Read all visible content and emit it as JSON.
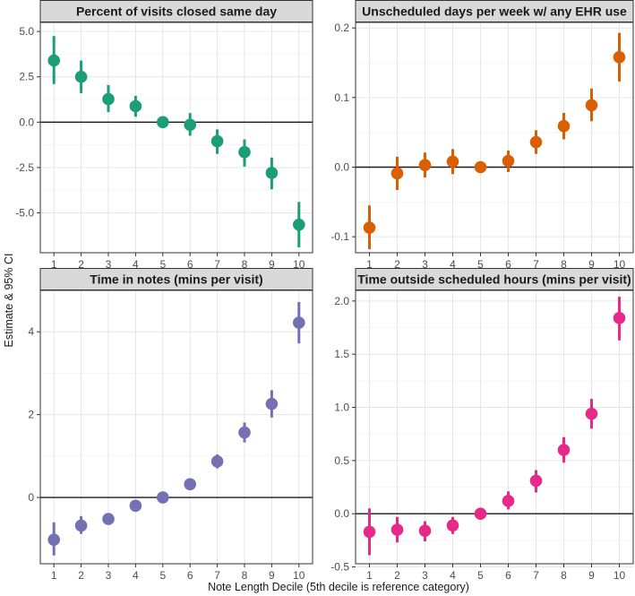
{
  "ylabel": "Estimate & 95% CI",
  "xlabel": "Note Length Decile (5th decile is reference category)",
  "chart_data": [
    {
      "type": "scatter",
      "title": "Percent of visits closed same day",
      "color": "#1b9e77",
      "x": [
        1,
        2,
        3,
        4,
        5,
        6,
        7,
        8,
        9,
        10
      ],
      "y": [
        3.4,
        2.5,
        1.27,
        0.88,
        0.0,
        -0.15,
        -1.05,
        -1.65,
        -2.8,
        -5.65
      ],
      "ci_low": [
        2.1,
        1.6,
        0.55,
        0.3,
        0.0,
        -0.75,
        -1.75,
        -2.45,
        -3.7,
        -6.9
      ],
      "ci_high": [
        4.75,
        3.4,
        2.05,
        1.45,
        0.0,
        0.5,
        -0.4,
        -0.95,
        -1.95,
        -4.4
      ],
      "ylim": [
        -7.2,
        5.5
      ],
      "yticks": [
        -5.0,
        -2.5,
        0.0,
        2.5,
        5.0
      ],
      "ytick_labels": [
        "-5.0",
        "-2.5",
        "0.0",
        "2.5",
        "5.0"
      ]
    },
    {
      "type": "scatter",
      "title": "Unscheduled days per week w/ any EHR use",
      "color": "#d95f02",
      "x": [
        1,
        2,
        3,
        4,
        5,
        6,
        7,
        8,
        9,
        10
      ],
      "y": [
        -0.087,
        -0.009,
        0.003,
        0.008,
        0.0,
        0.009,
        0.036,
        0.059,
        0.089,
        0.158
      ],
      "ci_low": [
        -0.118,
        -0.033,
        -0.015,
        -0.01,
        0.0,
        -0.007,
        0.019,
        0.04,
        0.066,
        0.123
      ],
      "ci_high": [
        -0.055,
        0.015,
        0.021,
        0.026,
        0.0,
        0.024,
        0.053,
        0.078,
        0.113,
        0.193
      ],
      "ylim": [
        -0.123,
        0.208
      ],
      "yticks": [
        -0.1,
        0.0,
        0.1,
        0.2
      ],
      "ytick_labels": [
        "-0.1",
        "0.0",
        "0.1",
        "0.2"
      ]
    },
    {
      "type": "scatter",
      "title": "Time in notes (mins per visit)",
      "color": "#7570b3",
      "x": [
        1,
        2,
        3,
        4,
        5,
        6,
        7,
        8,
        9,
        10
      ],
      "y": [
        -1.02,
        -0.68,
        -0.52,
        -0.2,
        0.0,
        0.32,
        0.87,
        1.57,
        2.26,
        4.22
      ],
      "ci_low": [
        -1.4,
        -0.88,
        -0.63,
        -0.3,
        0.0,
        0.2,
        0.7,
        1.33,
        1.93,
        3.72
      ],
      "ci_high": [
        -0.6,
        -0.45,
        -0.41,
        -0.1,
        0.0,
        0.42,
        1.04,
        1.81,
        2.59,
        4.72
      ],
      "ylim": [
        -1.6,
        5.0
      ],
      "yticks": [
        0,
        2,
        4
      ],
      "ytick_labels": [
        "0",
        "2",
        "4"
      ]
    },
    {
      "type": "scatter",
      "title": "Time outside scheduled hours (mins per visit)",
      "color": "#e7298a",
      "x": [
        1,
        2,
        3,
        4,
        5,
        6,
        7,
        8,
        9,
        10
      ],
      "y": [
        -0.17,
        -0.15,
        -0.16,
        -0.11,
        0.0,
        0.12,
        0.31,
        0.6,
        0.94,
        1.84
      ],
      "ci_low": [
        -0.39,
        -0.27,
        -0.26,
        -0.19,
        0.0,
        0.04,
        0.2,
        0.48,
        0.8,
        1.63
      ],
      "ci_high": [
        0.05,
        -0.03,
        -0.07,
        -0.03,
        0.0,
        0.21,
        0.41,
        0.72,
        1.08,
        2.04
      ],
      "ylim": [
        -0.47,
        2.1
      ],
      "yticks": [
        -0.5,
        0.0,
        0.5,
        1.0,
        1.5,
        2.0
      ],
      "ytick_labels": [
        "-0.5",
        "0.0",
        "0.5",
        "1.0",
        "1.5",
        "2.0"
      ]
    }
  ],
  "xticks": [
    1,
    2,
    3,
    4,
    5,
    6,
    7,
    8,
    9,
    10
  ],
  "xtick_labels": [
    "1",
    "2",
    "3",
    "4",
    "5",
    "6",
    "7",
    "8",
    "9",
    "10"
  ],
  "reference_line_y": 0,
  "grid": true
}
